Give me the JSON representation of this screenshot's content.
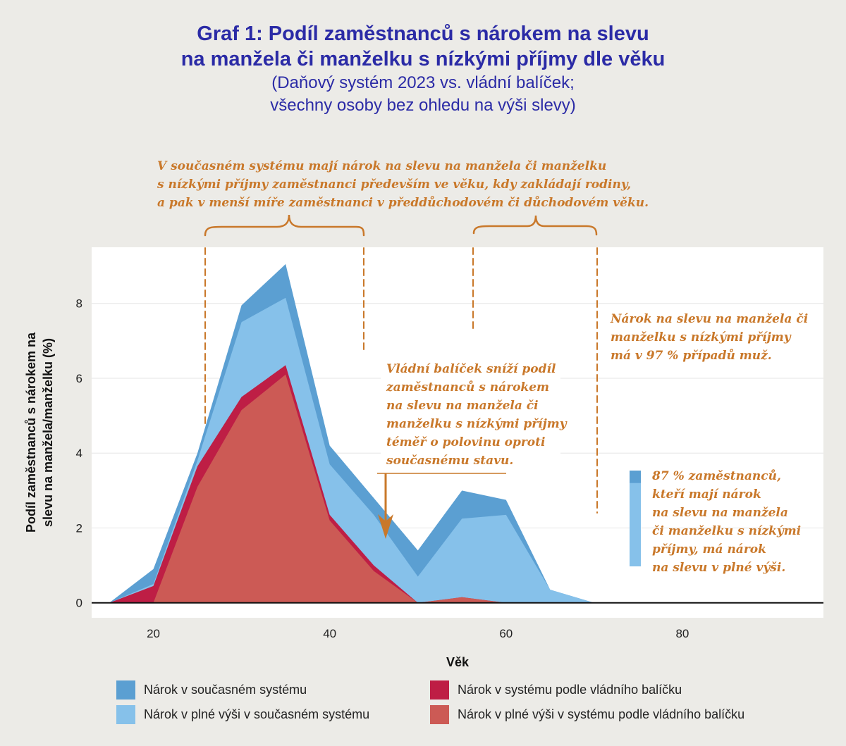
{
  "header": {
    "title_line1": "Graf 1: Podíl zaměstnanců s nárokem na slevu",
    "title_line2": "na manžela či manželku s nízkými příjmy dle věku",
    "subtitle_line1": "(Daňový systém 2023 vs. vládní balíček;",
    "subtitle_line2": "všechny osoby bez ohledu na výši slevy)"
  },
  "colors": {
    "current_total": "#5b9fd2",
    "current_full": "#86c1ea",
    "gov_total": "#be1e45",
    "gov_full": "#cc5a55",
    "annotation": "#c9782a",
    "title": "#2b2ba6"
  },
  "annotations": {
    "top_line1": "V současném systému mají nárok na slevu na manžela či manželku",
    "top_line2": "s nízkými příjmy zaměstnanci především ve věku, kdy zakládají rodiny,",
    "top_line3": "a pak v menší míře zaměstnanci v předdůchodovém či důchodovém věku.",
    "right_line1": "Nárok na slevu na manžela či",
    "right_line2": "manželku s nízkými příjmy",
    "right_line3": "má v 97 % případů muž.",
    "mid_line1": "Vládní balíček sníží podíl",
    "mid_line2": "zaměstnanců s nárokem",
    "mid_line3": "na slevu na manžela či",
    "mid_line4": "manželku s nízkými příjmy",
    "mid_line5": "téměř o polovinu oproti",
    "mid_line6": "současnému stavu.",
    "bar_line1": "87 % zaměstnanců,",
    "bar_line2": "kteří mají nárok",
    "bar_line3": "na slevu na manžela",
    "bar_line4": "či manželku s nízkými",
    "bar_line5": "příjmy, má nárok",
    "bar_line6": "na slevu v plné výši."
  },
  "legend": {
    "current_total": "Nárok v současném systému",
    "current_full": "Nárok v plné výši v současném systému",
    "gov_total": "Nárok v systému podle vládního balíčku",
    "gov_full": "Nárok v plné výši v systému podle vládního balíčku"
  },
  "chart_data": {
    "type": "area",
    "title": "Graf 1: Podíl zaměstnanců s nárokem na slevu na manžela či manželku s nízkými příjmy dle věku",
    "xlabel": "Věk",
    "ylabel": "Podíl zaměstnanců s nárokem na slevu na manžela/manželku (%)",
    "xlim": [
      13,
      96
    ],
    "ylim": [
      -0.4,
      9.5
    ],
    "xticks": [
      20,
      40,
      60,
      80
    ],
    "yticks": [
      0,
      2,
      4,
      6,
      8
    ],
    "x": [
      15,
      20,
      25,
      30,
      35,
      40,
      45,
      50,
      55,
      60,
      65,
      70
    ],
    "series": [
      {
        "name": "Nárok v současném systému",
        "values": [
          0,
          0.9,
          4.0,
          7.95,
          9.05,
          4.2,
          2.8,
          1.4,
          3.0,
          2.75,
          0.35,
          0
        ]
      },
      {
        "name": "Nárok v plné výši v současném systému",
        "values": [
          0,
          0.5,
          3.8,
          7.5,
          8.15,
          3.7,
          2.35,
          0.7,
          2.25,
          2.35,
          0.35,
          0
        ]
      },
      {
        "name": "Nárok v systému podle vládního balíčku",
        "values": [
          0,
          0.45,
          3.65,
          5.5,
          6.35,
          2.35,
          1.0,
          0,
          0.15,
          0,
          0,
          0
        ]
      },
      {
        "name": "Nárok v plné výši v systému podle vládního balíčku",
        "values": [
          0,
          0,
          3.1,
          5.15,
          6.1,
          2.2,
          0.85,
          0,
          0.15,
          0,
          0,
          0
        ]
      }
    ],
    "annotation_bar": {
      "total": 100,
      "full": 87
    }
  }
}
